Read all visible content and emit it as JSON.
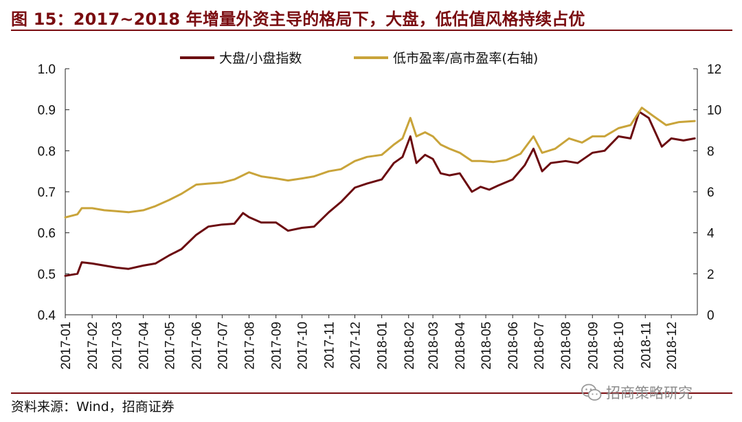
{
  "page": {
    "title": "图 15：2017~2018 年增量外资主导的格局下，大盘，低估值风格持续占优",
    "source": "资料来源：Wind，招商证券",
    "watermark": "招商策略研究",
    "colors": {
      "title": "#7a0c10",
      "series_large_small": "#6b0a0f",
      "series_pe": "#c9a43a",
      "axis": "#222222"
    }
  },
  "chart_data": {
    "type": "line",
    "title": "",
    "x_tick_labels": [
      "2017-01",
      "2017-02",
      "2017-03",
      "2017-04",
      "2017-05",
      "2017-06",
      "2017-07",
      "2017-08",
      "2017-09",
      "2017-10",
      "2017-11",
      "2017-12",
      "2018-01",
      "2018-02",
      "2018-03",
      "2018-04",
      "2018-05",
      "2018-06",
      "2018-07",
      "2018-08",
      "2018-09",
      "2018-10",
      "2018-11",
      "2018-12"
    ],
    "x_range": [
      "2017-01",
      "2018-12"
    ],
    "y_left": {
      "ylim": [
        0.4,
        1.0
      ],
      "ticks": [
        "0.4",
        "0.5",
        "0.6",
        "0.7",
        "0.8",
        "0.9",
        "1.0"
      ]
    },
    "y_right": {
      "ylim": [
        0,
        12
      ],
      "ticks": [
        "0",
        "2",
        "4",
        "6",
        "8",
        "10",
        "12"
      ]
    },
    "grid": false,
    "legend_position": "top-center",
    "series": [
      {
        "name": "大盘/小盘指数",
        "axis": "left",
        "color": "#6b0a0f",
        "points": [
          [
            "2017-01-01",
            0.495
          ],
          [
            "2017-01-15",
            0.5
          ],
          [
            "2017-01-20",
            0.528
          ],
          [
            "2017-02-01",
            0.525
          ],
          [
            "2017-02-15",
            0.52
          ],
          [
            "2017-03-01",
            0.515
          ],
          [
            "2017-03-15",
            0.512
          ],
          [
            "2017-04-01",
            0.52
          ],
          [
            "2017-04-15",
            0.525
          ],
          [
            "2017-05-01",
            0.545
          ],
          [
            "2017-05-15",
            0.56
          ],
          [
            "2017-06-01",
            0.595
          ],
          [
            "2017-06-15",
            0.615
          ],
          [
            "2017-07-01",
            0.62
          ],
          [
            "2017-07-15",
            0.622
          ],
          [
            "2017-07-25",
            0.648
          ],
          [
            "2017-08-01",
            0.638
          ],
          [
            "2017-08-15",
            0.625
          ],
          [
            "2017-09-01",
            0.625
          ],
          [
            "2017-09-15",
            0.605
          ],
          [
            "2017-10-01",
            0.612
          ],
          [
            "2017-10-15",
            0.615
          ],
          [
            "2017-11-01",
            0.65
          ],
          [
            "2017-11-15",
            0.675
          ],
          [
            "2017-12-01",
            0.71
          ],
          [
            "2017-12-15",
            0.72
          ],
          [
            "2018-01-01",
            0.73
          ],
          [
            "2018-01-15",
            0.77
          ],
          [
            "2018-01-25",
            0.785
          ],
          [
            "2018-02-03",
            0.835
          ],
          [
            "2018-02-10",
            0.77
          ],
          [
            "2018-02-20",
            0.79
          ],
          [
            "2018-03-01",
            0.78
          ],
          [
            "2018-03-10",
            0.745
          ],
          [
            "2018-03-20",
            0.74
          ],
          [
            "2018-04-01",
            0.745
          ],
          [
            "2018-04-15",
            0.7
          ],
          [
            "2018-04-25",
            0.712
          ],
          [
            "2018-05-05",
            0.705
          ],
          [
            "2018-05-15",
            0.715
          ],
          [
            "2018-06-01",
            0.73
          ],
          [
            "2018-06-15",
            0.765
          ],
          [
            "2018-06-25",
            0.805
          ],
          [
            "2018-07-05",
            0.75
          ],
          [
            "2018-07-15",
            0.77
          ],
          [
            "2018-08-01",
            0.775
          ],
          [
            "2018-08-15",
            0.77
          ],
          [
            "2018-09-01",
            0.795
          ],
          [
            "2018-09-15",
            0.8
          ],
          [
            "2018-10-01",
            0.835
          ],
          [
            "2018-10-15",
            0.83
          ],
          [
            "2018-10-25",
            0.895
          ],
          [
            "2018-11-05",
            0.88
          ],
          [
            "2018-11-20",
            0.81
          ],
          [
            "2018-12-01",
            0.83
          ],
          [
            "2018-12-15",
            0.825
          ],
          [
            "2018-12-28",
            0.83
          ]
        ]
      },
      {
        "name": "低市盈率/高市盈率(右轴)",
        "axis": "right",
        "color": "#c9a43a",
        "points": [
          [
            "2017-01-01",
            4.75
          ],
          [
            "2017-01-15",
            4.9
          ],
          [
            "2017-01-20",
            5.2
          ],
          [
            "2017-02-01",
            5.2
          ],
          [
            "2017-02-15",
            5.1
          ],
          [
            "2017-03-01",
            5.05
          ],
          [
            "2017-03-15",
            5.0
          ],
          [
            "2017-04-01",
            5.1
          ],
          [
            "2017-04-15",
            5.3
          ],
          [
            "2017-05-01",
            5.6
          ],
          [
            "2017-05-15",
            5.9
          ],
          [
            "2017-06-01",
            6.35
          ],
          [
            "2017-06-15",
            6.4
          ],
          [
            "2017-07-01",
            6.45
          ],
          [
            "2017-07-15",
            6.6
          ],
          [
            "2017-08-01",
            6.95
          ],
          [
            "2017-08-15",
            6.75
          ],
          [
            "2017-09-01",
            6.65
          ],
          [
            "2017-09-15",
            6.55
          ],
          [
            "2017-10-01",
            6.65
          ],
          [
            "2017-10-15",
            6.75
          ],
          [
            "2017-11-01",
            7.0
          ],
          [
            "2017-11-15",
            7.1
          ],
          [
            "2017-12-01",
            7.5
          ],
          [
            "2017-12-15",
            7.7
          ],
          [
            "2018-01-01",
            7.8
          ],
          [
            "2018-01-15",
            8.3
          ],
          [
            "2018-01-25",
            8.6
          ],
          [
            "2018-02-03",
            9.6
          ],
          [
            "2018-02-10",
            8.7
          ],
          [
            "2018-02-20",
            8.9
          ],
          [
            "2018-03-01",
            8.7
          ],
          [
            "2018-03-10",
            8.3
          ],
          [
            "2018-03-20",
            8.1
          ],
          [
            "2018-04-01",
            7.9
          ],
          [
            "2018-04-15",
            7.5
          ],
          [
            "2018-04-25",
            7.5
          ],
          [
            "2018-05-10",
            7.45
          ],
          [
            "2018-05-25",
            7.55
          ],
          [
            "2018-06-10",
            7.85
          ],
          [
            "2018-06-25",
            8.7
          ],
          [
            "2018-07-05",
            7.9
          ],
          [
            "2018-07-20",
            8.1
          ],
          [
            "2018-08-05",
            8.6
          ],
          [
            "2018-08-20",
            8.4
          ],
          [
            "2018-09-01",
            8.7
          ],
          [
            "2018-09-15",
            8.7
          ],
          [
            "2018-10-01",
            9.1
          ],
          [
            "2018-10-15",
            9.25
          ],
          [
            "2018-10-28",
            10.1
          ],
          [
            "2018-11-10",
            9.7
          ],
          [
            "2018-11-25",
            9.25
          ],
          [
            "2018-12-10",
            9.4
          ],
          [
            "2018-12-28",
            9.45
          ]
        ]
      }
    ]
  }
}
